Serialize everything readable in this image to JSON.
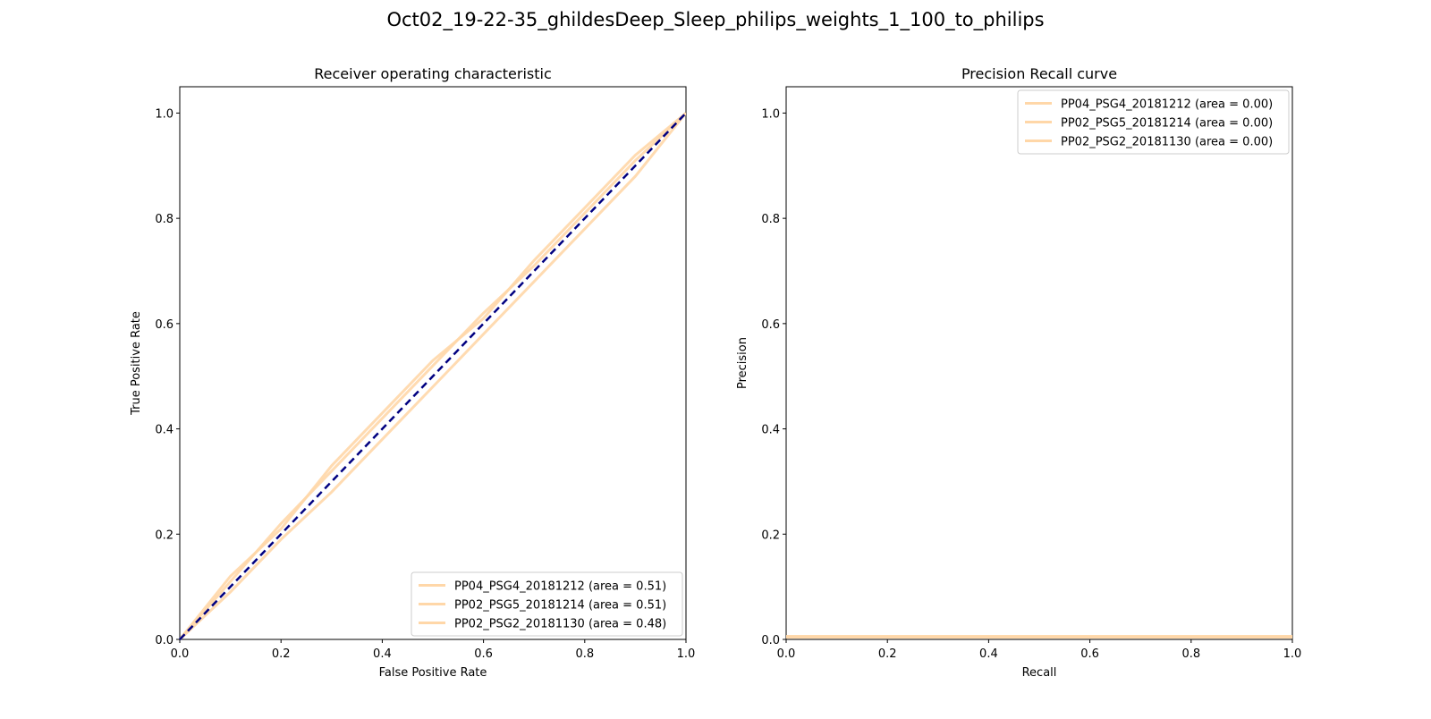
{
  "figure": {
    "suptitle": "Oct02_19-22-35_ghildesDeep_Sleep_philips_weights_1_100_to_philips"
  },
  "colors": {
    "curve": "#ffd7a8",
    "curve_dark": "#f4a261",
    "diagonal": "#000080",
    "axis": "#000000"
  },
  "chart_data": [
    {
      "type": "line",
      "title": "Receiver operating characteristic",
      "xlabel": "False Positive Rate",
      "ylabel": "True Positive Rate",
      "xlim": [
        0.0,
        1.0
      ],
      "ylim": [
        0.0,
        1.05
      ],
      "xticks": [
        "0.0",
        "0.2",
        "0.4",
        "0.6",
        "0.8",
        "1.0"
      ],
      "yticks": [
        "0.0",
        "0.2",
        "0.4",
        "0.6",
        "0.8",
        "1.0"
      ],
      "legend_position": "lower-right",
      "diagonal": {
        "x": [
          0,
          1
        ],
        "y": [
          0,
          1
        ],
        "style": "dashed"
      },
      "series": [
        {
          "name": "PP04_PSG4_20181212 (area = 0.51)",
          "x": [
            0,
            0.1,
            0.2,
            0.3,
            0.4,
            0.5,
            0.6,
            0.7,
            0.8,
            0.9,
            1.0
          ],
          "y": [
            0,
            0.11,
            0.22,
            0.32,
            0.42,
            0.52,
            0.62,
            0.71,
            0.81,
            0.91,
            1.0
          ]
        },
        {
          "name": "PP02_PSG5_20181214 (area = 0.51)",
          "x": [
            0,
            0.1,
            0.2,
            0.3,
            0.4,
            0.5,
            0.6,
            0.7,
            0.8,
            0.9,
            1.0
          ],
          "y": [
            0,
            0.12,
            0.21,
            0.33,
            0.43,
            0.53,
            0.61,
            0.72,
            0.82,
            0.92,
            1.0
          ]
        },
        {
          "name": "PP02_PSG2_20181130 (area = 0.48)",
          "x": [
            0,
            0.1,
            0.2,
            0.3,
            0.4,
            0.5,
            0.6,
            0.7,
            0.8,
            0.9,
            1.0
          ],
          "y": [
            0,
            0.09,
            0.19,
            0.28,
            0.38,
            0.48,
            0.58,
            0.68,
            0.78,
            0.88,
            1.0
          ]
        }
      ]
    },
    {
      "type": "line",
      "title": "Precision Recall curve",
      "xlabel": "Recall",
      "ylabel": "Precision",
      "xlim": [
        0.0,
        1.0
      ],
      "ylim": [
        0.0,
        1.05
      ],
      "xticks": [
        "0.0",
        "0.2",
        "0.4",
        "0.6",
        "0.8",
        "1.0"
      ],
      "yticks": [
        "0.0",
        "0.2",
        "0.4",
        "0.6",
        "0.8",
        "1.0"
      ],
      "legend_position": "upper-right",
      "series": [
        {
          "name": "PP04_PSG4_20181212 (area = 0.00)",
          "x": [
            0,
            1.0
          ],
          "y": [
            0.005,
            0.005
          ]
        },
        {
          "name": "PP02_PSG5_20181214 (area = 0.00)",
          "x": [
            0,
            1.0
          ],
          "y": [
            0.006,
            0.006
          ]
        },
        {
          "name": "PP02_PSG2_20181130 (area = 0.00)",
          "x": [
            0,
            1.0
          ],
          "y": [
            0.004,
            0.004
          ]
        }
      ]
    }
  ]
}
